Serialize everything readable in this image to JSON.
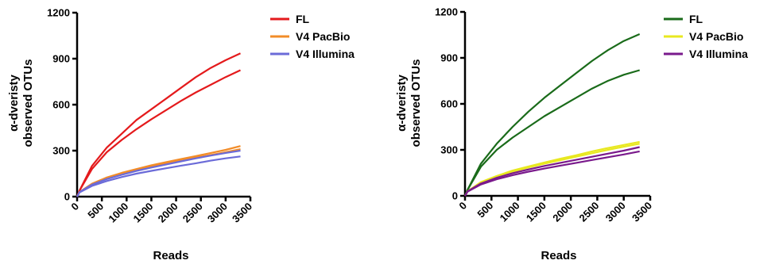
{
  "chart_data": [
    {
      "type": "line",
      "xlabel": "Reads",
      "ylabel_line1": "α-dveristy",
      "ylabel_line2": "observed OTUs",
      "xlim": [
        0,
        3500
      ],
      "ylim": [
        0,
        1200
      ],
      "xticks": [
        0,
        500,
        1000,
        1500,
        2000,
        2500,
        3000,
        3500
      ],
      "yticks": [
        0,
        300,
        600,
        900,
        1200
      ],
      "grid": false,
      "legend_position": "right",
      "legend": [
        {
          "name": "FL",
          "color": "#e41a1c"
        },
        {
          "name": "V4 PacBio",
          "color": "#f28c28"
        },
        {
          "name": "V4 Illumina",
          "color": "#6b6bd8"
        }
      ],
      "series": [
        {
          "group": "FL",
          "color": "#e41a1c",
          "x": [
            0,
            50,
            300,
            600,
            900,
            1200,
            1500,
            1800,
            2100,
            2400,
            2700,
            3000,
            3300
          ],
          "y": [
            0,
            40,
            200,
            320,
            410,
            500,
            570,
            640,
            710,
            780,
            840,
            890,
            935
          ]
        },
        {
          "group": "FL",
          "color": "#e41a1c",
          "x": [
            0,
            50,
            300,
            600,
            900,
            1200,
            1500,
            1800,
            2100,
            2400,
            2700,
            3000,
            3300
          ],
          "y": [
            0,
            40,
            180,
            290,
            370,
            440,
            505,
            565,
            625,
            680,
            730,
            780,
            825
          ]
        },
        {
          "group": "V4 PacBio",
          "color": "#f28c28",
          "x": [
            0,
            50,
            300,
            600,
            900,
            1200,
            1500,
            1800,
            2100,
            2400,
            2700,
            3000,
            3300
          ],
          "y": [
            0,
            30,
            85,
            125,
            155,
            180,
            205,
            225,
            245,
            265,
            285,
            305,
            330
          ]
        },
        {
          "group": "V4 PacBio",
          "color": "#f28c28",
          "x": [
            0,
            50,
            300,
            600,
            900,
            1200,
            1500,
            1800,
            2100,
            2400,
            2700,
            3000,
            3300
          ],
          "y": [
            0,
            30,
            80,
            118,
            148,
            172,
            195,
            215,
            235,
            255,
            272,
            290,
            310
          ]
        },
        {
          "group": "V4 Illumina",
          "color": "#6b6bd8",
          "x": [
            0,
            50,
            300,
            600,
            900,
            1200,
            1500,
            1800,
            2100,
            2400,
            2700,
            3000,
            3300
          ],
          "y": [
            0,
            30,
            78,
            115,
            143,
            168,
            190,
            210,
            230,
            250,
            268,
            285,
            300
          ]
        },
        {
          "group": "V4 Illumina",
          "color": "#6b6bd8",
          "x": [
            0,
            50,
            300,
            600,
            900,
            1200,
            1500,
            1800,
            2100,
            2400,
            2700,
            3000,
            3300
          ],
          "y": [
            0,
            28,
            70,
            102,
            128,
            150,
            168,
            185,
            202,
            218,
            235,
            250,
            262
          ]
        }
      ]
    },
    {
      "type": "line",
      "xlabel": "Reads",
      "ylabel_line1": "α-dveristy",
      "ylabel_line2": "observed OTUs",
      "xlim": [
        0,
        3500
      ],
      "ylim": [
        0,
        1200
      ],
      "xticks": [
        0,
        500,
        1000,
        1500,
        2000,
        2500,
        3000,
        3500
      ],
      "yticks": [
        0,
        300,
        600,
        900,
        1200
      ],
      "grid": false,
      "legend_position": "right",
      "legend": [
        {
          "name": "FL",
          "color": "#1a6b1a"
        },
        {
          "name": "V4 PacBio",
          "color": "#e8e820"
        },
        {
          "name": "V4 Illumina",
          "color": "#7a1a8c"
        }
      ],
      "series": [
        {
          "group": "FL",
          "color": "#1a6b1a",
          "x": [
            0,
            50,
            300,
            600,
            900,
            1200,
            1500,
            1800,
            2100,
            2400,
            2700,
            3000,
            3300
          ],
          "y": [
            0,
            40,
            210,
            340,
            450,
            550,
            640,
            720,
            800,
            880,
            950,
            1010,
            1055
          ]
        },
        {
          "group": "FL",
          "color": "#1a6b1a",
          "x": [
            0,
            50,
            300,
            600,
            900,
            1200,
            1500,
            1800,
            2100,
            2400,
            2700,
            3000,
            3300
          ],
          "y": [
            0,
            40,
            190,
            300,
            380,
            450,
            520,
            580,
            640,
            700,
            750,
            790,
            820
          ]
        },
        {
          "group": "V4 PacBio",
          "color": "#e8e820",
          "x": [
            0,
            50,
            300,
            600,
            900,
            1200,
            1500,
            1800,
            2100,
            2400,
            2700,
            3000,
            3300
          ],
          "y": [
            0,
            30,
            90,
            130,
            165,
            192,
            218,
            242,
            265,
            290,
            312,
            332,
            352
          ]
        },
        {
          "group": "V4 PacBio",
          "color": "#e8e820",
          "x": [
            0,
            50,
            300,
            600,
            900,
            1200,
            1500,
            1800,
            2100,
            2400,
            2700,
            3000,
            3300
          ],
          "y": [
            0,
            30,
            85,
            125,
            158,
            185,
            210,
            233,
            255,
            278,
            300,
            320,
            340
          ]
        },
        {
          "group": "V4 Illumina",
          "color": "#7a1a8c",
          "x": [
            0,
            50,
            300,
            600,
            900,
            1200,
            1500,
            1800,
            2100,
            2400,
            2700,
            3000,
            3300
          ],
          "y": [
            0,
            30,
            80,
            118,
            148,
            172,
            195,
            215,
            235,
            255,
            275,
            295,
            318
          ]
        },
        {
          "group": "V4 Illumina",
          "color": "#7a1a8c",
          "x": [
            0,
            50,
            300,
            600,
            900,
            1200,
            1500,
            1800,
            2100,
            2400,
            2700,
            3000,
            3300
          ],
          "y": [
            0,
            28,
            74,
            108,
            135,
            158,
            178,
            197,
            215,
            234,
            252,
            270,
            290
          ]
        }
      ]
    }
  ]
}
